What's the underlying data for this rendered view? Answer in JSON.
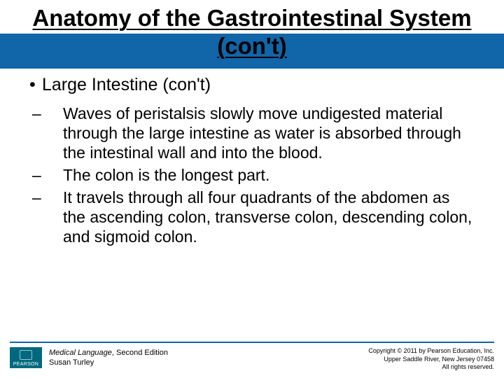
{
  "colors": {
    "blue_bar": "#1165a9",
    "rule": "#1165a9",
    "text": "#000000",
    "background": "#ffffff",
    "logo_bg": "#00697f",
    "logo_text": "#ffffff"
  },
  "typography": {
    "title_fontsize": 33,
    "lvl1_fontsize": 25,
    "lvl2_fontsize": 23,
    "footer_left_fontsize": 11,
    "footer_right_fontsize": 9
  },
  "title": "Anatomy of the Gastrointestinal System (con't)",
  "bullets": {
    "lvl1": {
      "marker": "•",
      "text": "Large Intestine (con't)"
    },
    "lvl2": [
      {
        "marker": "–",
        "text": "Waves of peristalsis slowly move undigested material through the large intestine as water is absorbed through the intestinal wall and into the blood."
      },
      {
        "marker": "–",
        "text": "The colon is the longest part."
      },
      {
        "marker": "–",
        "text": "It travels through all four quadrants of the abdomen as the ascending colon, transverse colon, descending colon, and sigmoid colon."
      }
    ]
  },
  "footer": {
    "logo_label": "PEARSON",
    "book_title": "Medical Language",
    "book_edition": ", Second Edition",
    "author": "Susan Turley",
    "copyright_line1": "Copyright © 2011 by Pearson Education, Inc.",
    "copyright_line2": "Upper Saddle River, New Jersey 07458",
    "copyright_line3": "All rights reserved."
  }
}
